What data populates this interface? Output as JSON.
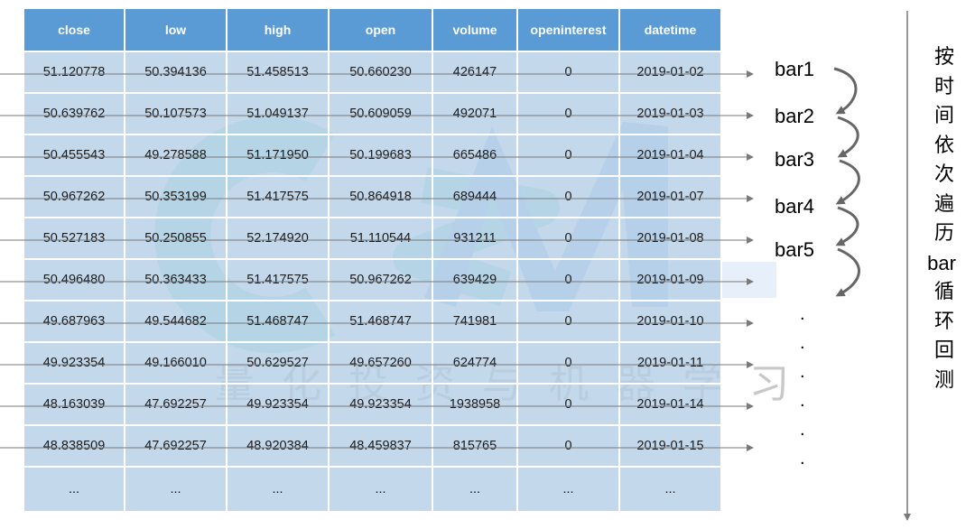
{
  "table": {
    "columns": [
      "close",
      "low",
      "high",
      "open",
      "volume",
      "openinterest",
      "datetime"
    ],
    "rows": [
      [
        "51.120778",
        "50.394136",
        "51.458513",
        "50.660230",
        "426147",
        "0",
        "2019-01-02"
      ],
      [
        "50.639762",
        "50.107573",
        "51.049137",
        "50.609059",
        "492071",
        "0",
        "2019-01-03"
      ],
      [
        "50.455543",
        "49.278588",
        "51.171950",
        "50.199683",
        "665486",
        "0",
        "2019-01-04"
      ],
      [
        "50.967262",
        "50.353199",
        "51.417575",
        "50.864918",
        "689444",
        "0",
        "2019-01-07"
      ],
      [
        "50.527183",
        "50.250855",
        "52.174920",
        "51.110544",
        "931211",
        "0",
        "2019-01-08"
      ],
      [
        "50.496480",
        "50.363433",
        "51.417575",
        "50.967262",
        "639429",
        "0",
        "2019-01-09"
      ],
      [
        "49.687963",
        "49.544682",
        "51.468747",
        "51.468747",
        "741981",
        "0",
        "2019-01-10"
      ],
      [
        "49.923354",
        "49.166010",
        "50.629527",
        "49.657260",
        "624774",
        "0",
        "2019-01-11"
      ],
      [
        "48.163039",
        "47.692257",
        "49.923354",
        "49.923354",
        "1938958",
        "0",
        "2019-01-14"
      ],
      [
        "48.838509",
        "47.692257",
        "48.920384",
        "48.459837",
        "815765",
        "0",
        "2019-01-15"
      ]
    ],
    "ellipsis": [
      "...",
      "...",
      "...",
      "...",
      "...",
      "...",
      "..."
    ]
  },
  "bar_labels": [
    "bar1",
    "bar2",
    "bar3",
    "bar4",
    "bar5"
  ],
  "continuation_dots": [
    ".",
    ".",
    ".",
    ".",
    ".",
    "."
  ],
  "side_caption": [
    "按",
    "时",
    "间",
    "依",
    "次",
    "遍",
    "历",
    "bar",
    "循",
    "环",
    "回",
    "测"
  ],
  "watermark": {
    "logo": "CQM",
    "text": "量化投资与机器学习"
  },
  "colors": {
    "header_bg": "#5b9bd5",
    "cell_bg": "#b7cfe8",
    "watermark_teal": "#8fe0cf",
    "watermark_blue": "#9cc4ec",
    "arrow": "#808080"
  }
}
